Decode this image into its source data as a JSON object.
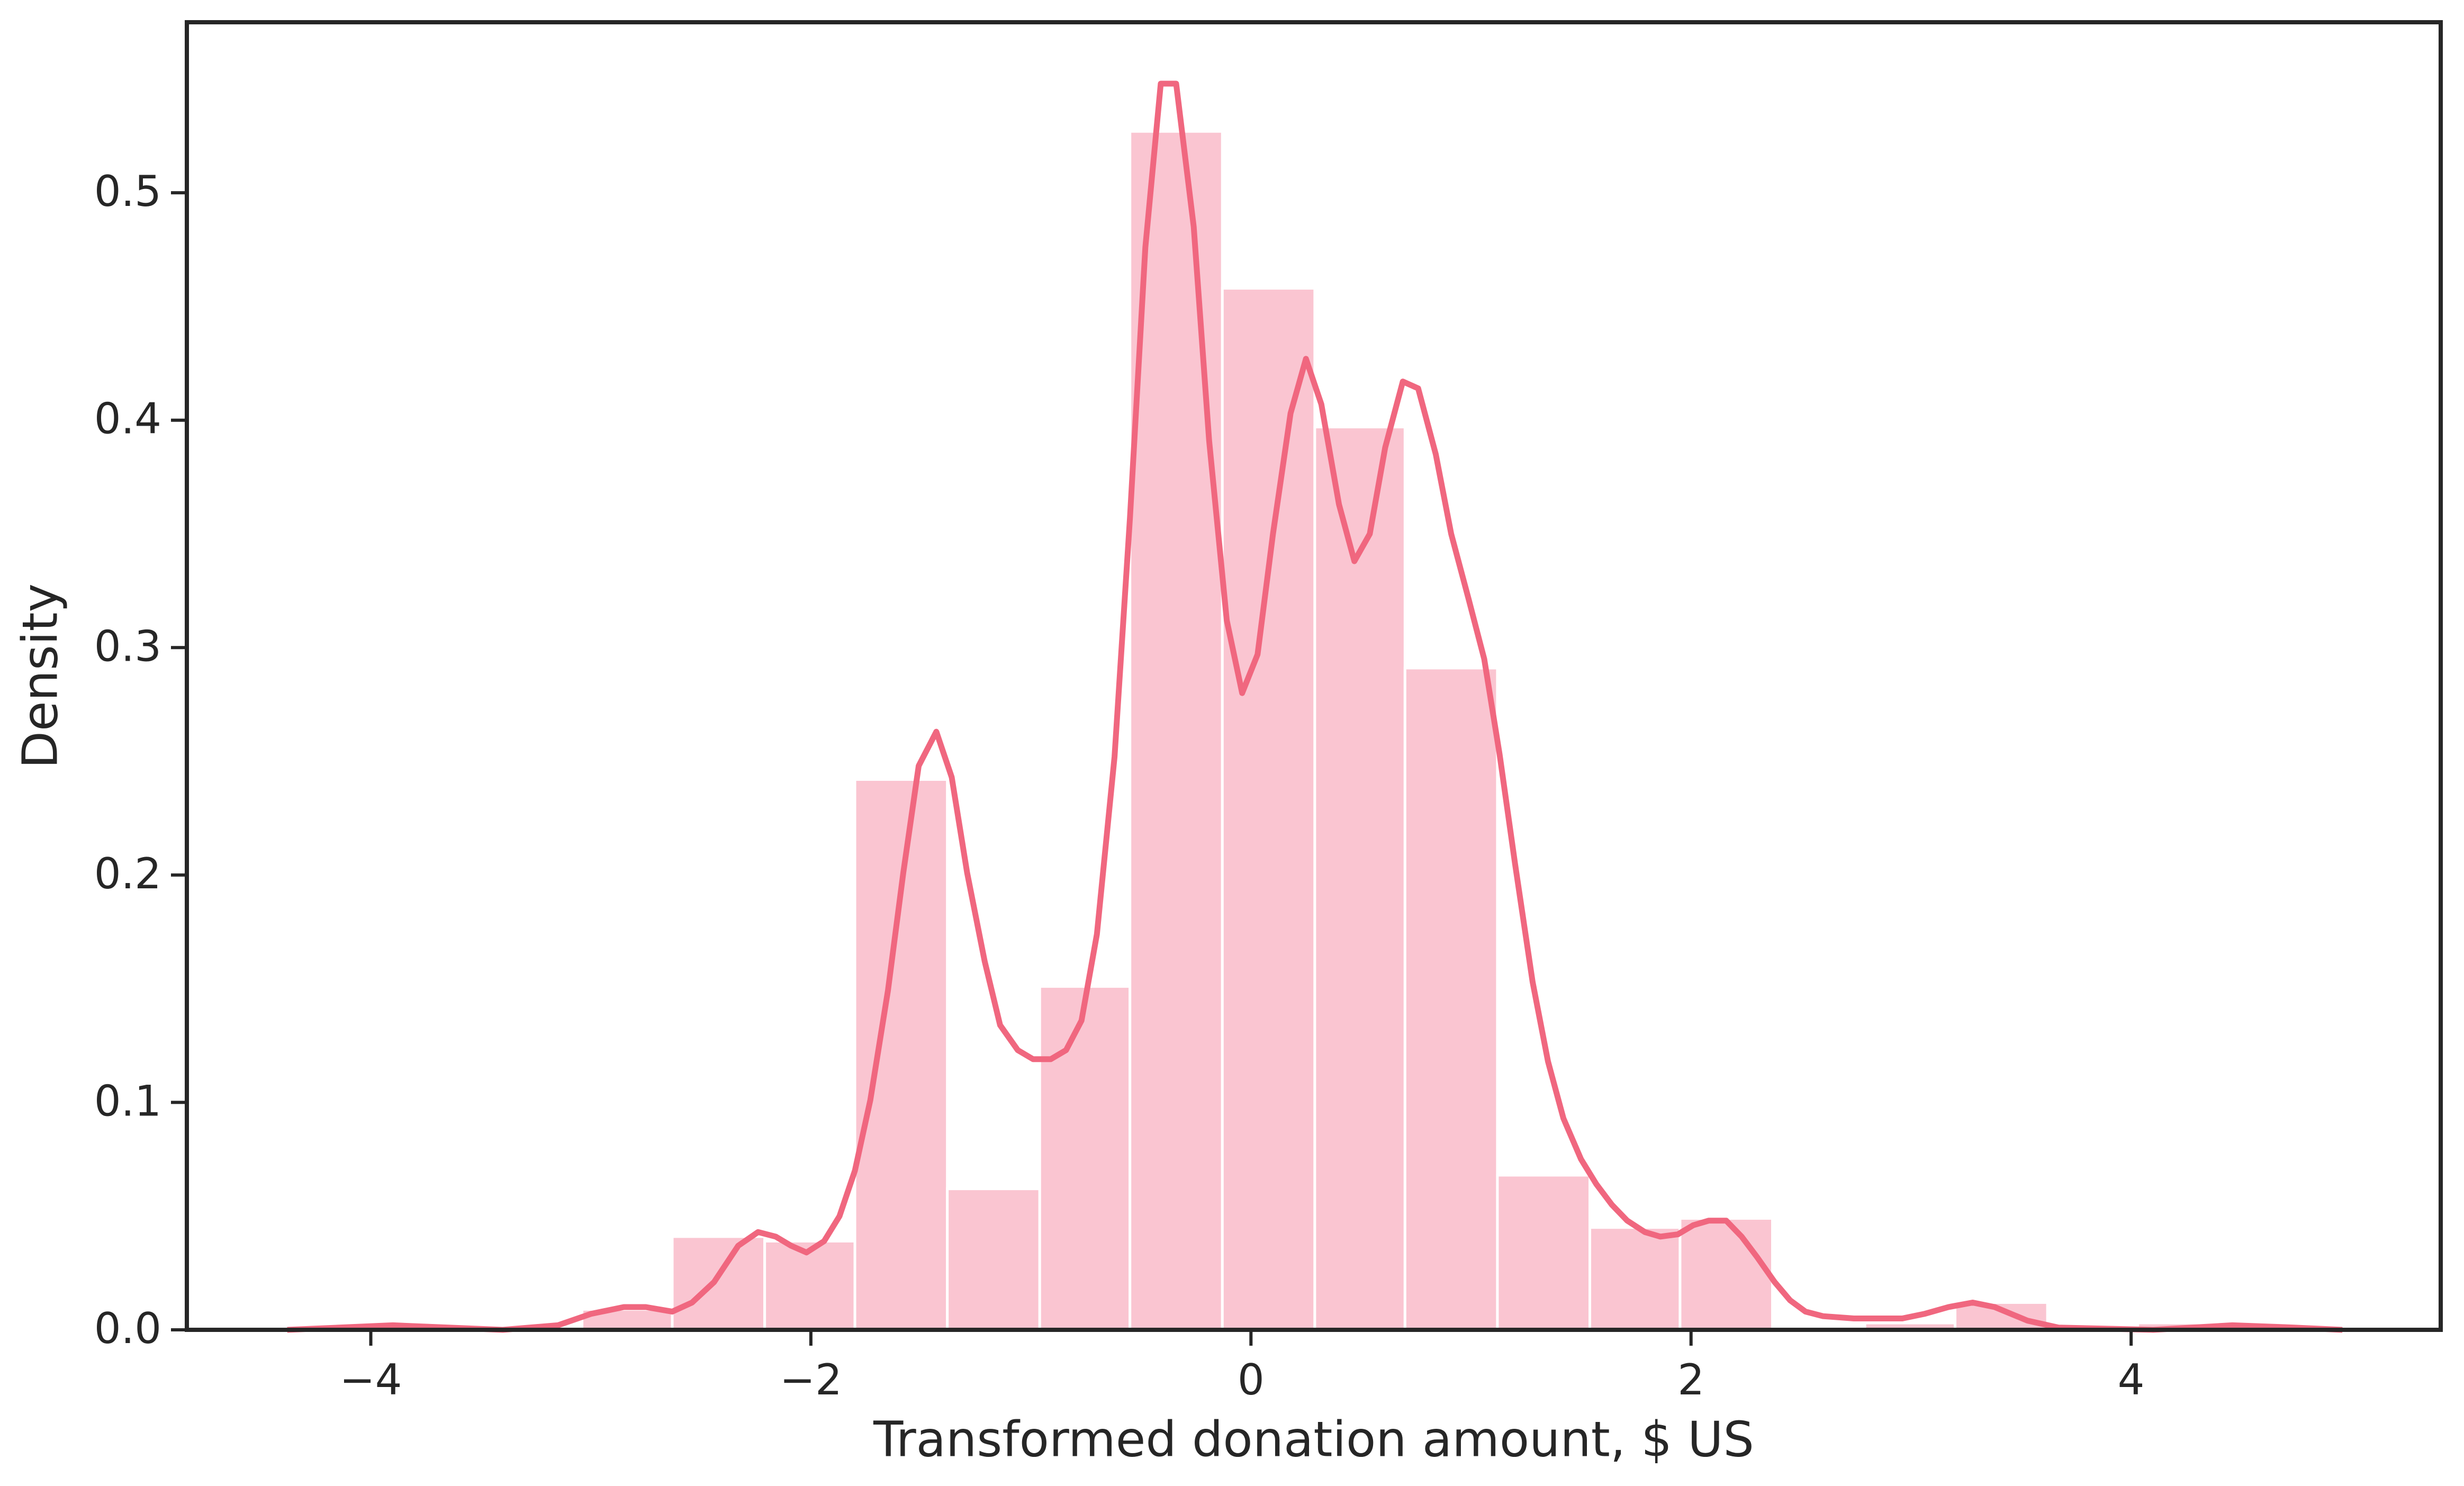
{
  "chart_data": {
    "type": "histogram",
    "xlabel": "Transformed donation amount, $ US",
    "ylabel": "Density",
    "bins": [
      -4.29,
      -3.88,
      -3.46,
      -3.04,
      -2.63,
      -2.21,
      -1.8,
      -1.38,
      -0.96,
      -0.55,
      -0.13,
      0.29,
      0.7,
      1.12,
      1.54,
      1.95,
      2.37,
      2.79,
      3.2,
      3.62,
      4.03,
      4.45,
      4.87
    ],
    "values": [
      0,
      0,
      0,
      0.009,
      0.041,
      0.039,
      0.242,
      0.062,
      0.151,
      0.527,
      0.458,
      0.397,
      0.291,
      0.068,
      0.045,
      0.049,
      0,
      0.003,
      0.012,
      0,
      0.003,
      0
    ],
    "color": "#fac5d1",
    "edgecolor": "#ffffff",
    "kde": {
      "color": "#f0677f",
      "x": [
        -4.38,
        -3.9,
        -3.4,
        -3.15,
        -3.0,
        -2.85,
        -2.75,
        -2.63,
        -2.54,
        -2.44,
        -2.33,
        -2.24,
        -2.16,
        -2.09,
        -2.02,
        -1.94,
        -1.87,
        -1.8,
        -1.73,
        -1.65,
        -1.58,
        -1.51,
        -1.43,
        -1.36,
        -1.29,
        -1.21,
        -1.14,
        -1.06,
        -0.99,
        -0.91,
        -0.84,
        -0.77,
        -0.7,
        -0.62,
        -0.55,
        -0.48,
        -0.41,
        -0.34,
        -0.26,
        -0.19,
        -0.11,
        -0.04,
        0.03,
        0.1,
        0.18,
        0.25,
        0.32,
        0.4,
        0.47,
        0.54,
        0.61,
        0.69,
        0.76,
        0.84,
        0.91,
        0.99,
        1.06,
        1.13,
        1.2,
        1.28,
        1.35,
        1.42,
        1.5,
        1.57,
        1.64,
        1.71,
        1.79,
        1.86,
        1.94,
        2.01,
        2.08,
        2.16,
        2.23,
        2.3,
        2.38,
        2.45,
        2.52,
        2.6,
        2.74,
        2.96,
        3.06,
        3.17,
        3.28,
        3.38,
        3.53,
        3.67,
        4.1,
        4.46,
        4.74,
        4.96
      ],
      "values": [
        0,
        0.002,
        0,
        0.002,
        0.007,
        0.01,
        0.01,
        0.008,
        0.012,
        0.021,
        0.037,
        0.043,
        0.041,
        0.037,
        0.034,
        0.039,
        0.05,
        0.07,
        0.101,
        0.149,
        0.201,
        0.248,
        0.263,
        0.243,
        0.201,
        0.162,
        0.134,
        0.123,
        0.119,
        0.119,
        0.123,
        0.136,
        0.174,
        0.252,
        0.357,
        0.476,
        0.548,
        0.548,
        0.485,
        0.391,
        0.312,
        0.28,
        0.297,
        0.35,
        0.403,
        0.427,
        0.407,
        0.363,
        0.338,
        0.35,
        0.388,
        0.417,
        0.414,
        0.385,
        0.35,
        0.321,
        0.295,
        0.253,
        0.205,
        0.153,
        0.118,
        0.093,
        0.075,
        0.064,
        0.055,
        0.048,
        0.043,
        0.041,
        0.042,
        0.046,
        0.048,
        0.048,
        0.041,
        0.032,
        0.021,
        0.013,
        0.008,
        0.006,
        0.005,
        0.005,
        0.007,
        0.01,
        0.012,
        0.01,
        0.004,
        0.001,
        0,
        0.002,
        0.001,
        0
      ]
    },
    "xlim": [
      -4.836,
      5.407
    ],
    "ylim": [
      0,
      0.575
    ],
    "xticks": [
      {
        "value": -4,
        "label": "−4"
      },
      {
        "value": -2,
        "label": "−2"
      },
      0,
      2,
      4
    ],
    "yticks": [
      {
        "value": 0,
        "label": "0.0"
      },
      0.1,
      0.2,
      0.3,
      0.4,
      0.5
    ]
  }
}
